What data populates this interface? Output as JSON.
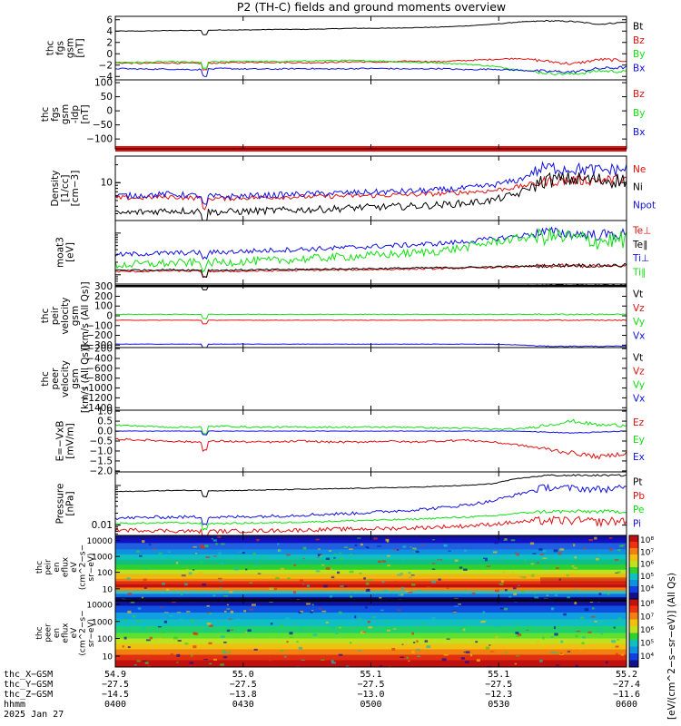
{
  "title": "P2 (TH-C) fields and ground moments overview",
  "colors": {
    "black": "#000000",
    "red": "#e01010",
    "green": "#10e010",
    "blue": "#1010e0"
  },
  "chart_data": [
    {
      "id": "fgs",
      "type": "line",
      "ylabel_lines": [
        "thc",
        "fgs",
        "gsm",
        "[nT]"
      ],
      "ylim": [
        -4.6,
        6.6
      ],
      "ytick_values": [
        6,
        4,
        2,
        0,
        -2,
        -4
      ],
      "ytick_labels": [
        "6",
        "4",
        "2",
        "0",
        "−2",
        "−4"
      ],
      "series": [
        {
          "name": "Bt",
          "color": "#000000",
          "values": [
            4.0,
            4.0,
            4.1,
            4.1,
            4.2,
            4.2,
            4.3,
            4.3,
            4.4,
            4.5,
            4.5,
            4.6,
            4.7,
            4.9,
            5.2,
            5.6,
            5.8,
            5.7,
            5.2,
            5.6
          ]
        },
        {
          "name": "Bz",
          "color": "#e01010",
          "values": [
            -1.6,
            -1.7,
            -1.6,
            -1.7,
            -1.6,
            -1.5,
            -1.5,
            -1.6,
            -1.5,
            -1.4,
            -1.5,
            -1.3,
            -1.4,
            -1.2,
            -1.0,
            -0.8,
            -1.3,
            -1.8,
            -1.0,
            -1.2
          ]
        },
        {
          "name": "By",
          "color": "#10e010",
          "values": [
            -1.5,
            -1.5,
            -1.4,
            -1.5,
            -1.4,
            -1.3,
            -1.4,
            -1.3,
            -1.2,
            -1.2,
            -1.3,
            -1.5,
            -1.6,
            -1.8,
            -2.2,
            -2.8,
            -3.4,
            -3.6,
            -3.0,
            -3.2
          ]
        },
        {
          "name": "Bx",
          "color": "#1010e0",
          "values": [
            -2.6,
            -2.7,
            -2.7,
            -2.8,
            -2.6,
            -2.7,
            -2.7,
            -2.6,
            -2.7,
            -2.6,
            -2.6,
            -2.7,
            -2.6,
            -2.8,
            -2.7,
            -2.9,
            -3.1,
            -3.2,
            -2.6,
            -2.4
          ]
        }
      ],
      "noise": [
        0.05,
        0.12,
        0.12,
        0.12
      ]
    },
    {
      "id": "fgs_ldp",
      "type": "line",
      "ylabel_lines": [
        "thc",
        "fgs",
        "gsm",
        "-ldp",
        "[nT]"
      ],
      "ylim": [
        -135,
        110
      ],
      "ytick_values": [
        100,
        50,
        0,
        -50,
        -100
      ],
      "ytick_labels": [
        "100",
        "50",
        "0",
        "−50",
        "−100"
      ],
      "series": [
        {
          "name": "Bz",
          "color": "#e01010",
          "values": [
            -128,
            -128,
            -128,
            -128,
            -128,
            -128,
            -128,
            -128,
            -128,
            -128,
            -128,
            -128,
            -128,
            -128,
            -128,
            -128,
            -128,
            -128,
            -128,
            -128
          ]
        },
        {
          "name": "By",
          "color": "#10e010",
          "values": [
            -133,
            -133,
            -133,
            -133,
            -133,
            -133,
            -133,
            -133,
            -133,
            -133,
            -133,
            -133,
            -133,
            -133,
            -133,
            -133,
            -133,
            -133,
            -133,
            -133
          ]
        },
        {
          "name": "Bx",
          "color": "#1010e0",
          "values": [
            -133,
            -133,
            -133,
            -133,
            -133,
            -133,
            -133,
            -133,
            -133,
            -133,
            -133,
            -133,
            -133,
            -133,
            -133,
            -133,
            -133,
            -133,
            -133,
            -133
          ]
        }
      ],
      "thick_series": 0,
      "noise": [
        0,
        0,
        0
      ]
    },
    {
      "id": "density",
      "type": "line",
      "scale": "log",
      "ylabel_lines": [
        "Density",
        "[1/cc]",
        "[cm−3]"
      ],
      "ylim": [
        2.3,
        28
      ],
      "ytick_values": [
        10
      ],
      "ytick_labels": [
        "10"
      ],
      "series": [
        {
          "name": "Ne",
          "color": "#e01010",
          "values": [
            5.5,
            5.6,
            5.8,
            5.5,
            5.4,
            5.6,
            5.7,
            5.8,
            5.9,
            6.0,
            6.1,
            6.3,
            6.5,
            6.9,
            7.3,
            8.5,
            10.5,
            11,
            11,
            11.5
          ]
        },
        {
          "name": "Ni",
          "color": "#000000",
          "values": [
            3.0,
            3.2,
            3.4,
            3.3,
            3.2,
            3.3,
            3.4,
            3.5,
            3.6,
            3.8,
            3.9,
            4.0,
            4.2,
            4.5,
            5.0,
            6.5,
            11,
            11.5,
            11,
            11
          ]
        },
        {
          "name": "Npot",
          "color": "#1010e0",
          "values": [
            6.0,
            6.1,
            6.4,
            6.0,
            5.8,
            6.0,
            6.2,
            6.4,
            6.6,
            6.8,
            7.0,
            7.2,
            7.5,
            8.0,
            9.0,
            11,
            18,
            17,
            16,
            17
          ]
        }
      ],
      "noise": [
        0.04,
        0.06,
        0.05
      ]
    },
    {
      "id": "temp",
      "type": "line",
      "scale": "log",
      "ylabel_lines": [
        "moat3",
        "[eV]"
      ],
      "ylim": [
        600,
        20000
      ],
      "ytick_values": [],
      "ytick_labels": [],
      "series": [
        {
          "name": "Te⊥",
          "color": "#e01010",
          "values": [
            1200,
            1200,
            1250,
            1220,
            1200,
            1230,
            1250,
            1280,
            1300,
            1320,
            1350,
            1380,
            1400,
            1450,
            1500,
            1550,
            1600,
            1650,
            1600,
            1650
          ]
        },
        {
          "name": "Te∥",
          "color": "#000000",
          "values": [
            1300,
            1300,
            1320,
            1300,
            1290,
            1310,
            1330,
            1350,
            1380,
            1400,
            1420,
            1450,
            1480,
            1500,
            1550,
            1600,
            1650,
            1700,
            1650,
            1700
          ]
        },
        {
          "name": "Ti⊥",
          "color": "#1010e0",
          "values": [
            3000,
            3200,
            3300,
            3400,
            3500,
            3700,
            3900,
            4100,
            4300,
            4600,
            4900,
            5200,
            5600,
            6200,
            7200,
            8500,
            10500,
            9500,
            9000,
            9500
          ]
        },
        {
          "name": "Ti∥",
          "color": "#10e010",
          "values": [
            1700,
            1800,
            1900,
            1950,
            2000,
            2100,
            2200,
            2400,
            2600,
            2800,
            3000,
            3300,
            3700,
            4500,
            6000,
            7500,
            8500,
            7500,
            6500,
            7000
          ]
        }
      ],
      "noise": [
        0.02,
        0.02,
        0.06,
        0.1
      ]
    },
    {
      "id": "velocity_i",
      "type": "line",
      "ylabel_lines": [
        "thc",
        "peir",
        "velocity",
        "gsm",
        "[km/s (All Qs)]"
      ],
      "ylim": [
        -325,
        325
      ],
      "ytick_values": [
        300,
        200,
        100,
        0,
        -100,
        -200,
        -300
      ],
      "ytick_labels": [
        "300",
        "200",
        "100",
        "0",
        "−100",
        "−200",
        "−300"
      ],
      "series": [
        {
          "name": "Vt",
          "color": "#000000",
          "values": [
            305,
            305,
            305,
            305,
            305,
            305,
            305,
            305,
            305,
            305,
            305,
            305,
            305,
            305,
            305,
            310,
            312,
            312,
            312,
            312
          ]
        },
        {
          "name": "Vz",
          "color": "#e01010",
          "values": [
            -45,
            -45,
            -45,
            -45,
            -45,
            -45,
            -45,
            -45,
            -45,
            -45,
            -45,
            -45,
            -45,
            -45,
            -45,
            -45,
            -45,
            -45,
            -45,
            -45
          ]
        },
        {
          "name": "Vy",
          "color": "#10e010",
          "values": [
            15,
            15,
            15,
            15,
            15,
            15,
            15,
            15,
            15,
            15,
            15,
            15,
            15,
            15,
            15,
            15,
            15,
            15,
            15,
            15
          ]
        },
        {
          "name": "Vx",
          "color": "#1010e0",
          "values": [
            -290,
            -290,
            -290,
            -290,
            -290,
            -290,
            -290,
            -290,
            -290,
            -290,
            -290,
            -290,
            -290,
            -290,
            -292,
            -298,
            -312,
            -312,
            -312,
            -312
          ]
        }
      ],
      "noise": [
        2,
        2,
        3,
        2
      ]
    },
    {
      "id": "velocity_e",
      "type": "line",
      "ylabel_lines": [
        "thc",
        "peer",
        "velocity",
        "gsm",
        "[km/s (All Qs)]"
      ],
      "ylim": [
        -1450,
        -180
      ],
      "ytick_values": [
        -200,
        -400,
        -600,
        -800,
        -1000,
        -1200,
        -1400
      ],
      "ytick_labels": [
        "−200",
        "−400",
        "−600",
        "−800",
        "−1000",
        "−1200",
        "−1400"
      ],
      "series": [],
      "legend": [
        {
          "name": "Vt",
          "color": "#000000"
        },
        {
          "name": "Vz",
          "color": "#e01010"
        },
        {
          "name": "Vy",
          "color": "#10e010"
        },
        {
          "name": "Vx",
          "color": "#1010e0"
        }
      ]
    },
    {
      "id": "efield",
      "type": "line",
      "ylabel_lines": [
        "E=−VxB",
        "[mV/m]"
      ],
      "ylim": [
        -2.05,
        1.05
      ],
      "ytick_values": [
        1.0,
        0.5,
        0.0,
        -0.5,
        -1.0,
        -1.5,
        -2.0
      ],
      "ytick_labels": [
        "1.0",
        "0.5",
        "0.0",
        "−0.5",
        "−1.0",
        "−1.5",
        "−2.0"
      ],
      "series": [
        {
          "name": "Ez",
          "color": "#e01010",
          "values": [
            -0.4,
            -0.45,
            -0.5,
            -0.55,
            -0.5,
            -0.55,
            -0.55,
            -0.5,
            -0.55,
            -0.55,
            -0.5,
            -0.55,
            -0.5,
            -0.45,
            -0.55,
            -0.7,
            -0.9,
            -1.1,
            -1.3,
            -1.1
          ]
        },
        {
          "name": "Ey",
          "color": "#10e010",
          "values": [
            0.3,
            0.25,
            0.2,
            0.2,
            0.25,
            0.2,
            0.2,
            0.2,
            0.2,
            0.2,
            0.2,
            0.2,
            0.15,
            0.15,
            0.1,
            0.1,
            0.3,
            0.5,
            0.3,
            0.3
          ]
        },
        {
          "name": "Ex",
          "color": "#1010e0",
          "values": [
            0.0,
            0.0,
            0.0,
            0.0,
            0.0,
            0.0,
            0.0,
            0.0,
            0.0,
            0.0,
            0.0,
            0.0,
            0.0,
            0.0,
            0.0,
            0.0,
            -0.05,
            -0.1,
            -0.05,
            0.0
          ]
        }
      ],
      "noise": [
        0.05,
        0.04,
        0.01
      ]
    },
    {
      "id": "pressure",
      "type": "line",
      "scale": "log",
      "ylabel_lines": [
        "Pressure",
        "[nPa]"
      ],
      "ylim": [
        0.0055,
        0.22
      ],
      "ytick_values": [
        0.01
      ],
      "ytick_labels": [
        "0.01"
      ],
      "series": [
        {
          "name": "Pt",
          "color": "#000000",
          "values": [
            0.07,
            0.072,
            0.075,
            0.075,
            0.074,
            0.076,
            0.078,
            0.08,
            0.082,
            0.085,
            0.088,
            0.09,
            0.095,
            0.1,
            0.11,
            0.15,
            0.18,
            0.18,
            0.18,
            0.18
          ]
        },
        {
          "name": "Pb",
          "color": "#e01010",
          "values": [
            0.0075,
            0.0075,
            0.0072,
            0.007,
            0.007,
            0.0072,
            0.0073,
            0.0075,
            0.0078,
            0.008,
            0.0082,
            0.0085,
            0.009,
            0.0095,
            0.0105,
            0.012,
            0.013,
            0.013,
            0.012,
            0.013
          ]
        },
        {
          "name": "Pe",
          "color": "#10e010",
          "values": [
            0.011,
            0.0112,
            0.0115,
            0.0112,
            0.011,
            0.0113,
            0.0115,
            0.012,
            0.0125,
            0.013,
            0.0135,
            0.014,
            0.015,
            0.016,
            0.017,
            0.02,
            0.022,
            0.022,
            0.022,
            0.022
          ]
        },
        {
          "name": "Pi",
          "color": "#1010e0",
          "values": [
            0.015,
            0.0155,
            0.016,
            0.016,
            0.0158,
            0.0165,
            0.017,
            0.018,
            0.019,
            0.02,
            0.022,
            0.024,
            0.027,
            0.032,
            0.04,
            0.06,
            0.09,
            0.085,
            0.08,
            0.085
          ]
        }
      ],
      "noise": [
        0.01,
        0.05,
        0.02,
        0.04
      ]
    },
    {
      "id": "spec_i",
      "type": "heatmap",
      "ylabel_lines": [
        "thc",
        "peir",
        "en",
        "eflux",
        "eV",
        "(cm^2−s−",
        "sr−eV)"
      ],
      "ytick_values": [
        10000,
        1000,
        100,
        10
      ],
      "ytick_labels": [
        "10000",
        "1000",
        "100",
        "10"
      ]
    },
    {
      "id": "spec_e",
      "type": "heatmap",
      "ylabel_lines": [
        "thc",
        "peer",
        "en",
        "eflux",
        "eV",
        "(cm^2−s−",
        "sr−eV)"
      ],
      "ytick_values": [
        10000,
        1000,
        100,
        10
      ],
      "ytick_labels": [
        "10000",
        "1000",
        "100",
        "10"
      ]
    }
  ],
  "colorbar": {
    "tick_labels": [
      "10⁸",
      "10⁷",
      "10⁶",
      "10⁵",
      "10⁴"
    ],
    "label": "[eV/(cm^2−s−sr−eV)] (All Qs)"
  },
  "footer": {
    "row_labels": [
      "thc_X−GSM",
      "thc_Y−GSM",
      "thc_Z−GSM",
      "hhmm",
      "2025 Jan 27"
    ],
    "columns": [
      {
        "x": "54.9",
        "y": "−27.5",
        "z": "−14.5",
        "t": "0400"
      },
      {
        "x": "55.0",
        "y": "−27.5",
        "z": "−13.8",
        "t": "0430"
      },
      {
        "x": "55.1",
        "y": "−27.5",
        "z": "−13.0",
        "t": "0500"
      },
      {
        "x": "55.1",
        "y": "−27.5",
        "z": "−12.3",
        "t": "0530"
      },
      {
        "x": "55.2",
        "y": "−27.4",
        "z": "−11.6",
        "t": "0600"
      }
    ]
  }
}
